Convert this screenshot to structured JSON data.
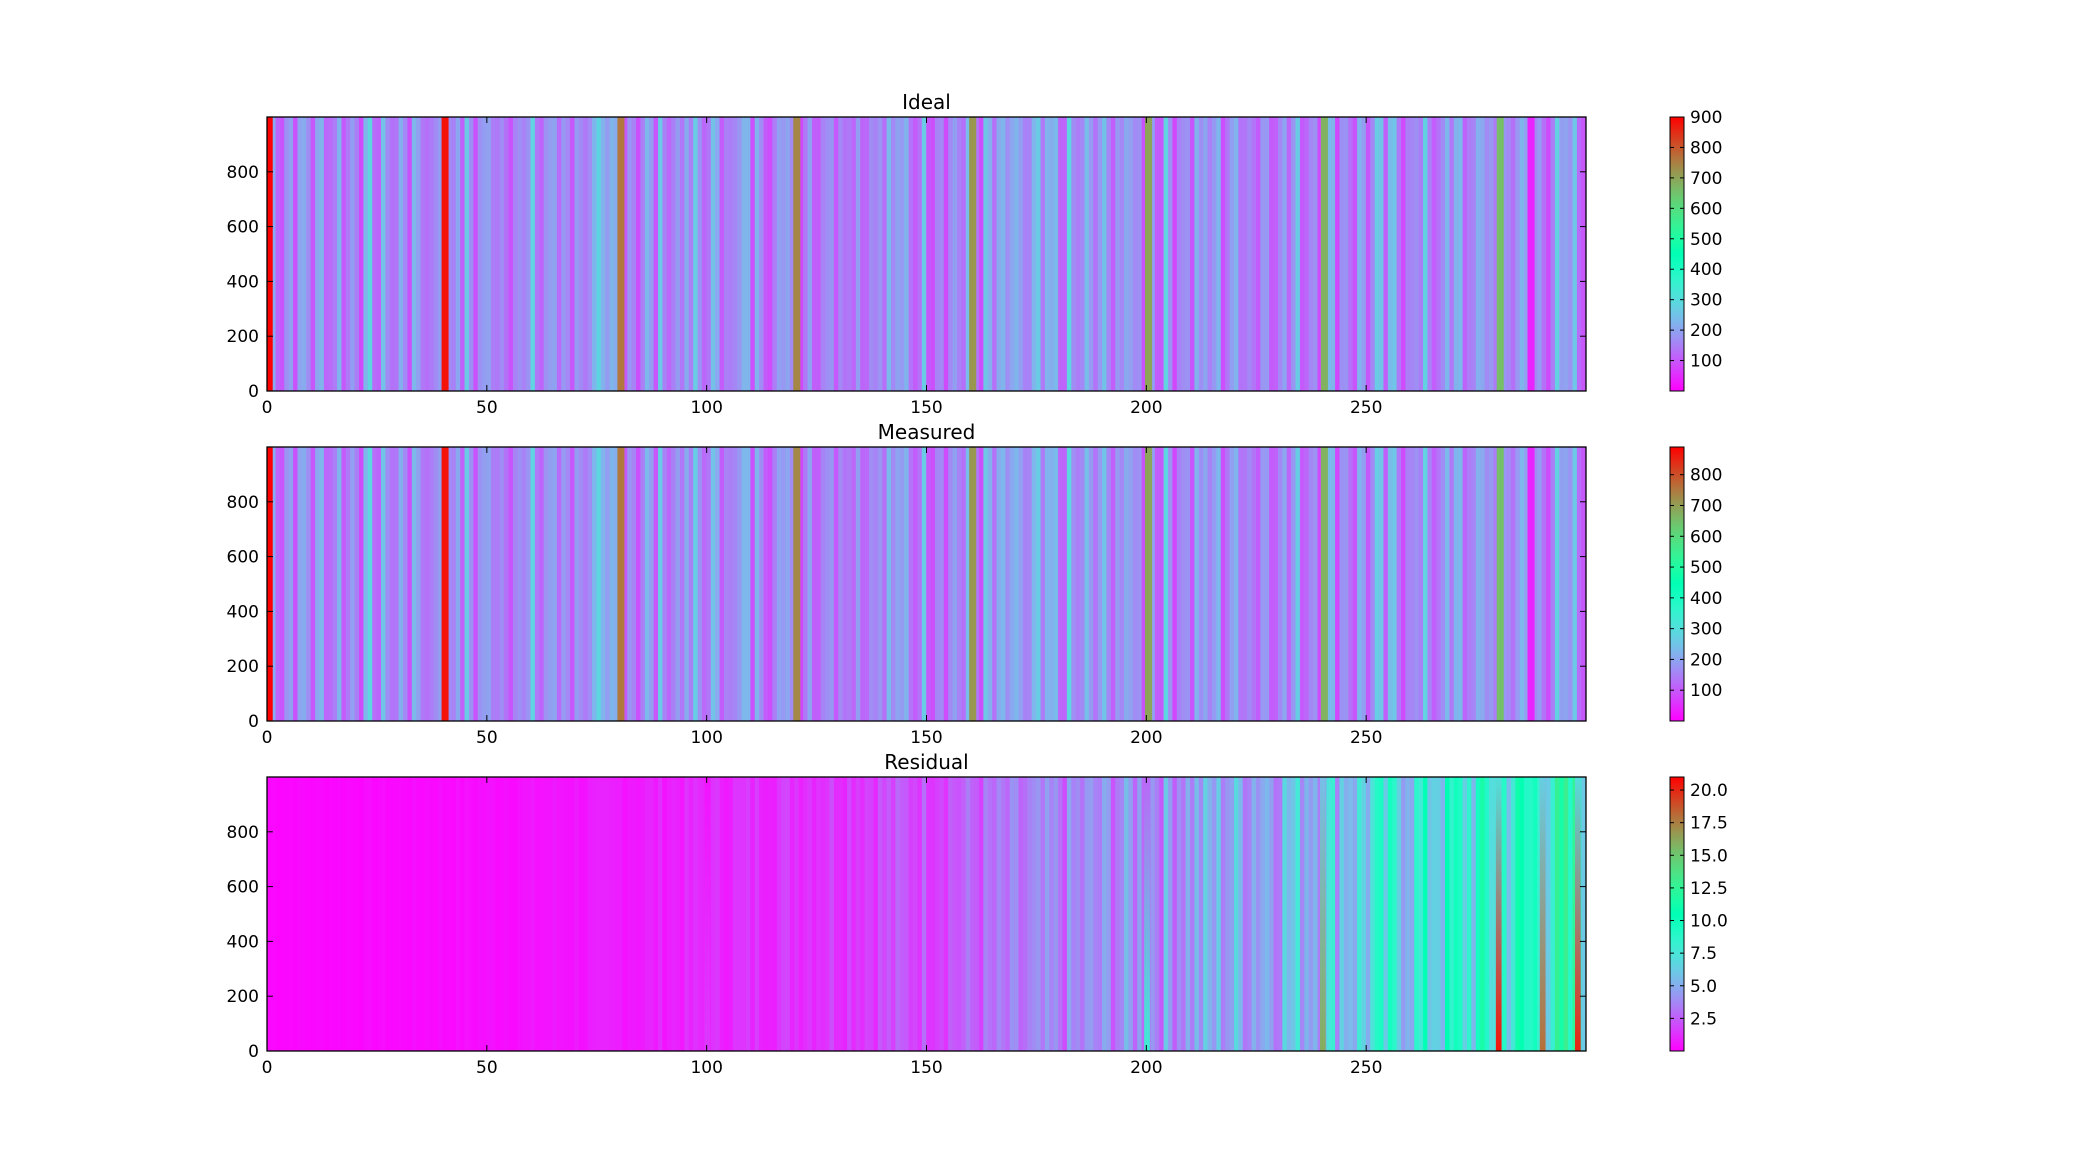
{
  "chart_data": [
    {
      "type": "heatmap",
      "title": "Ideal",
      "xlim": [
        0,
        300
      ],
      "ylim": [
        0,
        1000
      ],
      "xticks": [
        "0",
        "50",
        "100",
        "150",
        "200",
        "250"
      ],
      "yticks": [
        "0",
        "200",
        "400",
        "600",
        "800"
      ],
      "colormap": "rainbow",
      "colorbar": {
        "range": [
          0,
          900
        ],
        "ticks": [
          "100",
          "200",
          "300",
          "400",
          "500",
          "600",
          "700",
          "800",
          "900"
        ]
      },
      "columns": [
        {
          "x": 0,
          "value": 900
        },
        {
          "x": 40,
          "value": 880
        },
        {
          "x": 80,
          "value": 760
        },
        {
          "x": 120,
          "value": 740
        },
        {
          "x": 160,
          "value": 720
        },
        {
          "x": 200,
          "value": 700
        },
        {
          "x": 240,
          "value": 680
        },
        {
          "x": 280,
          "value": 660
        },
        {
          "x": 287,
          "value": 40
        }
      ],
      "grid": false
    },
    {
      "type": "heatmap",
      "title": "Measured",
      "xlim": [
        0,
        300
      ],
      "ylim": [
        0,
        1000
      ],
      "xticks": [
        "0",
        "50",
        "100",
        "150",
        "200",
        "250"
      ],
      "yticks": [
        "0",
        "200",
        "400",
        "600",
        "800"
      ],
      "colormap": "rainbow",
      "colorbar": {
        "range": [
          0,
          890
        ],
        "ticks": [
          "100",
          "200",
          "300",
          "400",
          "500",
          "600",
          "700",
          "800"
        ]
      },
      "columns": [
        {
          "x": 0,
          "value": 890
        },
        {
          "x": 40,
          "value": 870
        },
        {
          "x": 80,
          "value": 750
        },
        {
          "x": 120,
          "value": 730
        },
        {
          "x": 160,
          "value": 710
        },
        {
          "x": 200,
          "value": 690
        },
        {
          "x": 240,
          "value": 670
        },
        {
          "x": 280,
          "value": 650
        },
        {
          "x": 287,
          "value": 40
        }
      ],
      "grid": false
    },
    {
      "type": "heatmap",
      "title": "Residual",
      "xlim": [
        0,
        300
      ],
      "ylim": [
        0,
        1000
      ],
      "xticks": [
        "0",
        "50",
        "100",
        "150",
        "200",
        "250"
      ],
      "yticks": [
        "0",
        "200",
        "400",
        "600",
        "800"
      ],
      "colormap": "rainbow",
      "colorbar": {
        "range": [
          0,
          21
        ],
        "ticks": [
          "2.5",
          "5.0",
          "7.5",
          "10.0",
          "12.5",
          "15.0",
          "17.5",
          "20.0"
        ]
      },
      "columns": [
        {
          "x": 0,
          "value": 0.2
        },
        {
          "x": 100,
          "value": 1.5
        },
        {
          "x": 200,
          "value": 8.0
        },
        {
          "x": 240,
          "value": 16.0
        },
        {
          "x": 280,
          "value": 20.5
        },
        {
          "x": 290,
          "value": 18.0
        },
        {
          "x": 298,
          "value": 20.0
        }
      ],
      "grid": false
    }
  ]
}
